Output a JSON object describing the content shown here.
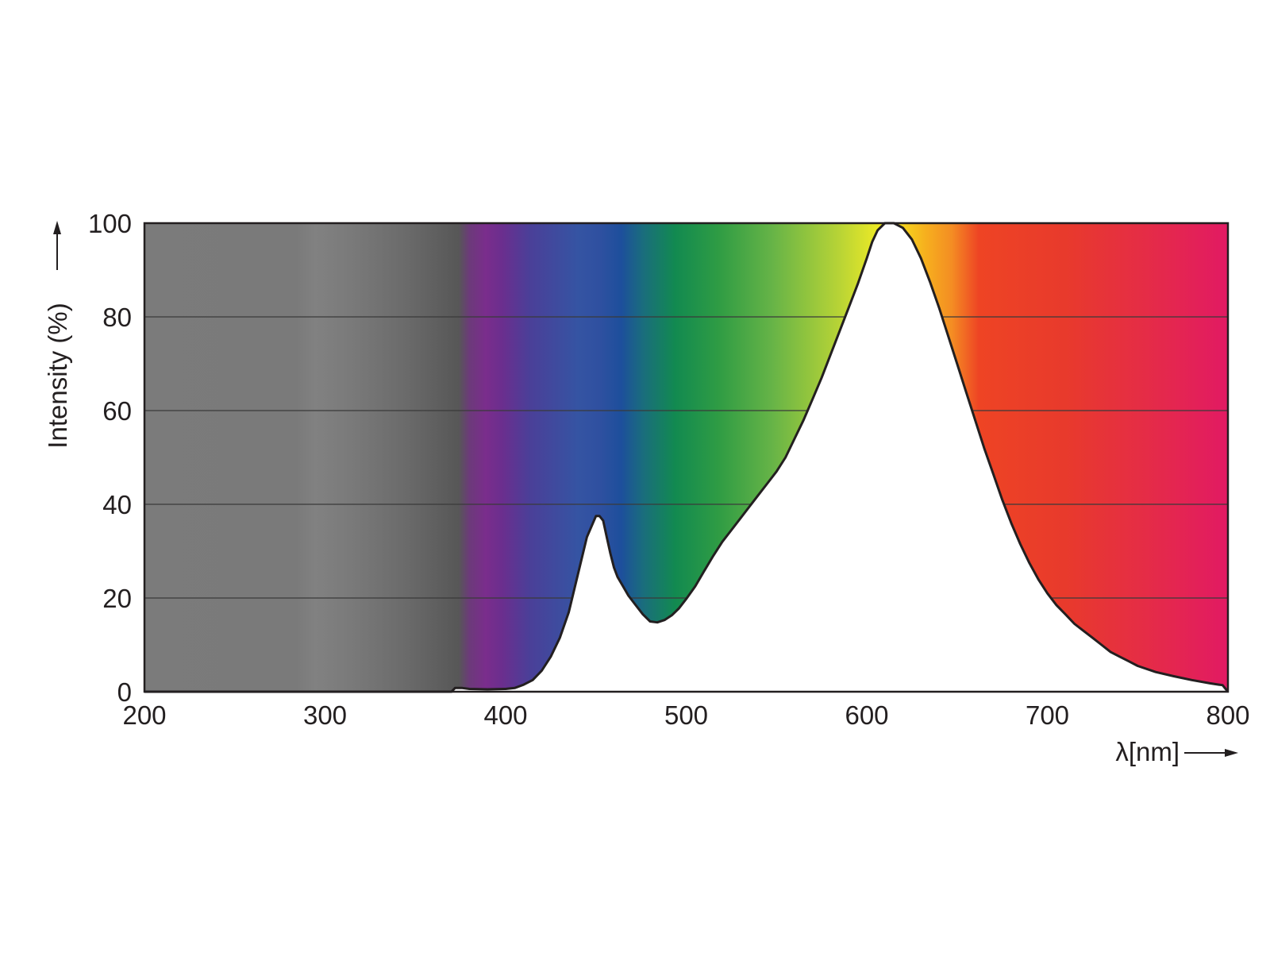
{
  "chart_data": {
    "type": "area",
    "xlabel": "λ[nm]",
    "ylabel": "Intensity (%)",
    "xlim": [
      200,
      800
    ],
    "ylim": [
      0,
      100
    ],
    "x_ticks": [
      200,
      300,
      400,
      500,
      600,
      700,
      800
    ],
    "y_ticks": [
      0,
      20,
      40,
      60,
      80,
      100
    ],
    "grid": "horizontal",
    "background": "visible spectrum color gradient",
    "series": [
      {
        "x": [
          200,
          370,
          372,
          376,
          380,
          390,
          400,
          405,
          410,
          415,
          420,
          425,
          430,
          435,
          440,
          445,
          450,
          452,
          454,
          456,
          458,
          460,
          462,
          465,
          468,
          472,
          476,
          480,
          484,
          488,
          492,
          496,
          500,
          505,
          510,
          515,
          520,
          525,
          530,
          535,
          540,
          545,
          550,
          555,
          560,
          565,
          570,
          575,
          580,
          585,
          590,
          595,
          600,
          603,
          606,
          610,
          615,
          620,
          625,
          630,
          635,
          640,
          645,
          650,
          655,
          660,
          665,
          670,
          675,
          680,
          685,
          690,
          695,
          700,
          705,
          710,
          715,
          720,
          725,
          730,
          735,
          740,
          745,
          750,
          760,
          770,
          780,
          790,
          795,
          797,
          800
        ],
        "y": [
          0,
          0,
          0.8,
          0.8,
          0.6,
          0.5,
          0.6,
          0.8,
          1.5,
          2.5,
          4.5,
          7.5,
          11.5,
          17,
          25,
          33,
          37.5,
          37.5,
          36.5,
          33,
          29.5,
          26.5,
          24.5,
          22.5,
          20.5,
          18.5,
          16.5,
          15,
          14.8,
          15.3,
          16.3,
          17.8,
          19.8,
          22.5,
          25.8,
          29,
          32,
          34.5,
          37,
          39.5,
          42,
          44.5,
          47,
          50,
          54,
          58,
          62.5,
          67,
          72,
          77,
          82,
          87,
          92.5,
          96,
          98.5,
          100,
          100,
          99,
          96.5,
          92.5,
          87.5,
          82,
          76,
          70,
          64,
          58,
          52,
          46.5,
          41,
          36,
          31.5,
          27.5,
          24,
          21,
          18.5,
          16.5,
          14.5,
          13,
          11.5,
          10,
          8.5,
          7.5,
          6.5,
          5.5,
          4.2,
          3.3,
          2.5,
          1.8,
          1.5,
          1.4,
          0
        ]
      }
    ]
  }
}
